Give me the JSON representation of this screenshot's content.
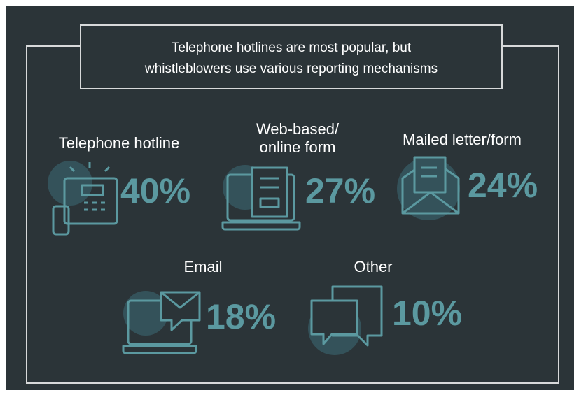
{
  "title": [
    "Telephone hotlines are most popular, but",
    "whistleblowers use various reporting mechanisms"
  ],
  "items": [
    {
      "label": [
        "Telephone hotline"
      ],
      "value": "40%"
    },
    {
      "label": [
        "Web-based/",
        "online form"
      ],
      "value": "27%"
    },
    {
      "label": [
        "Mailed letter/form"
      ],
      "value": "24%"
    },
    {
      "label": [
        "Email"
      ],
      "value": "18%"
    },
    {
      "label": [
        "Other"
      ],
      "value": "10%"
    }
  ]
}
